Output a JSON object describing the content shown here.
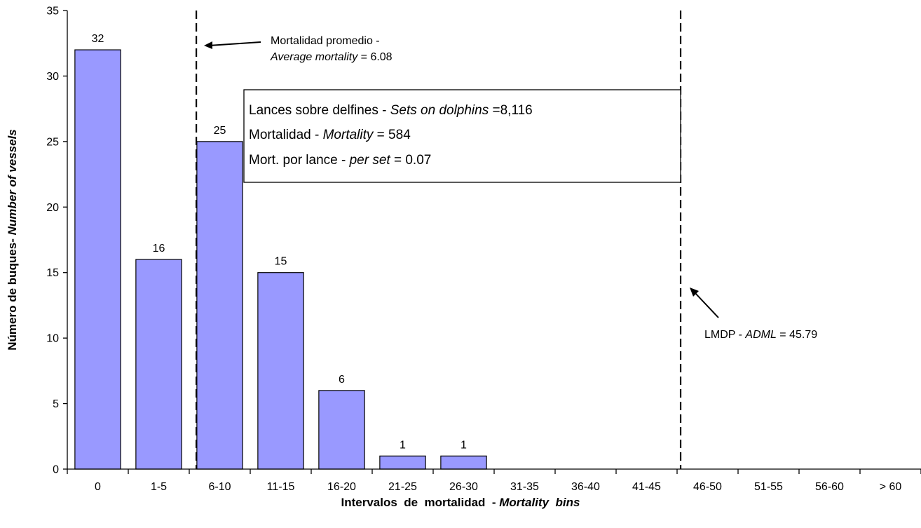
{
  "chart_data": {
    "type": "bar",
    "title": "",
    "xlabel": "Intervalos de mortalidad - Mortality bins",
    "xlabel_parts": {
      "plain": "Intervalos  de  mortalidad  - ",
      "italic": "Mortality  bins"
    },
    "ylabel": "Número de buques- Number of vessels",
    "ylabel_parts": {
      "plain": "Número de buques- ",
      "italic": "Number of vessels"
    },
    "categories": [
      "0",
      "1-5",
      "6-10",
      "11-15",
      "16-20",
      "21-25",
      "26-30",
      "31-35",
      "36-40",
      "41-45",
      "46-50",
      "51-55",
      "56-60",
      "> 60"
    ],
    "values": [
      32,
      16,
      25,
      15,
      6,
      1,
      1,
      0,
      0,
      0,
      0,
      0,
      0,
      0
    ],
    "data_labels": [
      "32",
      "16",
      "25",
      "15",
      "6",
      "1",
      "1",
      "",
      "",
      "",
      "",
      "",
      "",
      ""
    ],
    "ylim": [
      0,
      35
    ],
    "yticks": [
      0,
      5,
      10,
      15,
      20,
      25,
      30,
      35
    ],
    "grid": false,
    "bar_color": "#9999FF",
    "reference_lines": [
      {
        "name": "average",
        "x_value": 6.08,
        "label_line1": "Mortalidad promedio -",
        "label_italic": "Average mortality",
        "label_value": " = 6.08"
      },
      {
        "name": "adml",
        "x_value": 45.79,
        "label_plain": "LMDP - ",
        "label_italic": "ADML",
        "label_value": " = 45.79"
      }
    ],
    "info_box": {
      "line1_plain": "Lances sobre delfines - ",
      "line1_italic": "Sets on dolphins",
      "line1_value": " =8,116",
      "line2_plain": "Mortalidad - ",
      "line2_italic": "Mortality",
      "line2_value": " = 584",
      "line3_plain": "Mort. por lance - ",
      "line3_italic": "per set",
      "line3_value": "  = 0.07"
    }
  }
}
